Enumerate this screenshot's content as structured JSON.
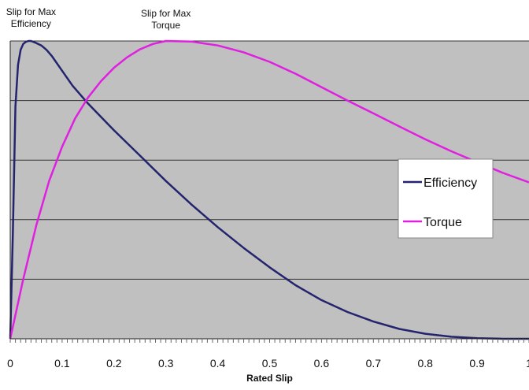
{
  "chart_data": {
    "type": "line",
    "title": "",
    "xlabel": "Rated Slip",
    "ylabel": "",
    "xlim": [
      0,
      1
    ],
    "ylim": [
      0,
      1
    ],
    "x_ticks": [
      "0",
      "0.1",
      "0.2",
      "0.3",
      "0.4",
      "0.5",
      "0.6",
      "0.7",
      "0.8",
      "0.9",
      "1"
    ],
    "grid": "horizontal",
    "legend_position": "right",
    "background_color": "#c0c0c0",
    "annotations": [
      {
        "text_lines": [
          "Slip for Max",
          "Efficiency"
        ],
        "x": 0.04
      },
      {
        "text_lines": [
          "Slip for Max",
          "Torque"
        ],
        "x": 0.3
      }
    ],
    "series": [
      {
        "name": "Efficiency",
        "color": "#24246e",
        "x": [
          0,
          0.005,
          0.01,
          0.015,
          0.02,
          0.025,
          0.03,
          0.035,
          0.04,
          0.05,
          0.06,
          0.07,
          0.08,
          0.1,
          0.12,
          0.15,
          0.2,
          0.25,
          0.3,
          0.35,
          0.4,
          0.45,
          0.5,
          0.55,
          0.6,
          0.65,
          0.7,
          0.75,
          0.8,
          0.85,
          0.9,
          0.95,
          1.0
        ],
        "values": [
          0,
          0.35,
          0.78,
          0.92,
          0.97,
          0.99,
          0.997,
          1.0,
          1.0,
          0.993,
          0.985,
          0.97,
          0.95,
          0.9,
          0.85,
          0.79,
          0.7,
          0.615,
          0.53,
          0.45,
          0.375,
          0.305,
          0.24,
          0.18,
          0.13,
          0.09,
          0.058,
          0.033,
          0.017,
          0.007,
          0.002,
          0.0,
          0.0
        ]
      },
      {
        "name": "Torque",
        "color": "#e020e0",
        "x": [
          0,
          0.025,
          0.05,
          0.075,
          0.1,
          0.125,
          0.15,
          0.175,
          0.2,
          0.225,
          0.25,
          0.275,
          0.3,
          0.35,
          0.4,
          0.45,
          0.5,
          0.55,
          0.6,
          0.65,
          0.7,
          0.75,
          0.8,
          0.85,
          0.9,
          0.95,
          1.0
        ],
        "values": [
          0,
          0.2,
          0.38,
          0.53,
          0.645,
          0.74,
          0.81,
          0.865,
          0.91,
          0.945,
          0.972,
          0.99,
          1.0,
          0.998,
          0.985,
          0.962,
          0.93,
          0.89,
          0.845,
          0.8,
          0.757,
          0.713,
          0.67,
          0.63,
          0.593,
          0.557,
          0.525
        ]
      }
    ]
  }
}
